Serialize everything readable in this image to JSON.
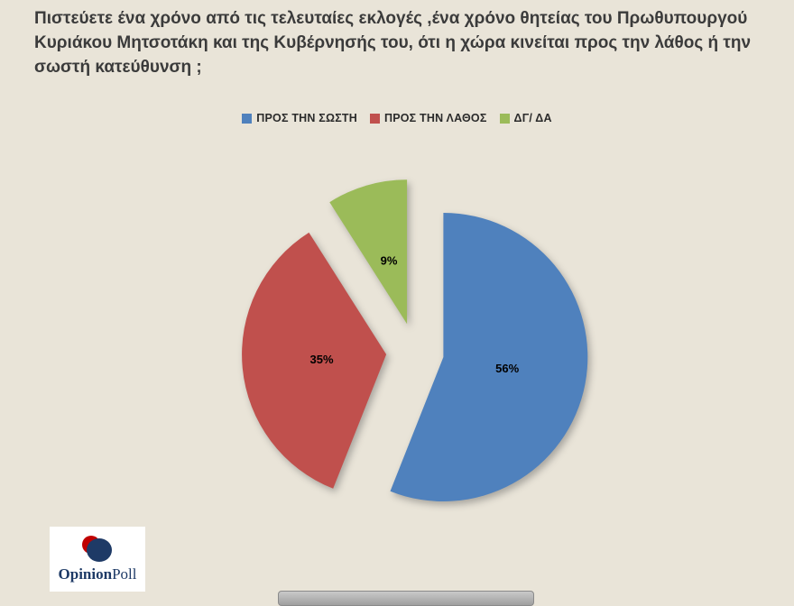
{
  "title": "Πιστεύετε ένα χρόνο από τις τελευταίες εκλογές ,ένα χρόνο θητείας του Πρωθυπουργού Κυριάκου Μητσοτάκη και της Κυβέρνησής του, ότι η χώρα κινείται προς την λάθος ή την σωστή κατεύθυνση ;",
  "chart_data": {
    "type": "pie",
    "labels": [
      "ΠΡΟΣ ΤΗΝ ΣΩΣΤΗ",
      "ΠΡΟΣ ΤΗΝ ΛΑΘΟΣ",
      "ΔΓ/ ΔΑ"
    ],
    "values": [
      56,
      35,
      9
    ],
    "value_labels": [
      "56%",
      "35%",
      "9%"
    ],
    "colors": [
      "#4f81bd",
      "#c0504d",
      "#9bbb59"
    ],
    "exploded": true,
    "start_angle_deg": 0,
    "direction": "clockwise",
    "legend_position": "top",
    "title": ""
  },
  "logo": {
    "text_primary": "Opinion",
    "text_secondary": "Poll"
  },
  "colors": {
    "background": "#e9e4d8",
    "title_text": "#3b3b3b",
    "slice_blue": "#4f81bd",
    "slice_red": "#c0504d",
    "slice_green": "#9bbb59",
    "logo_navy": "#1e3a66",
    "logo_red": "#c00000"
  }
}
